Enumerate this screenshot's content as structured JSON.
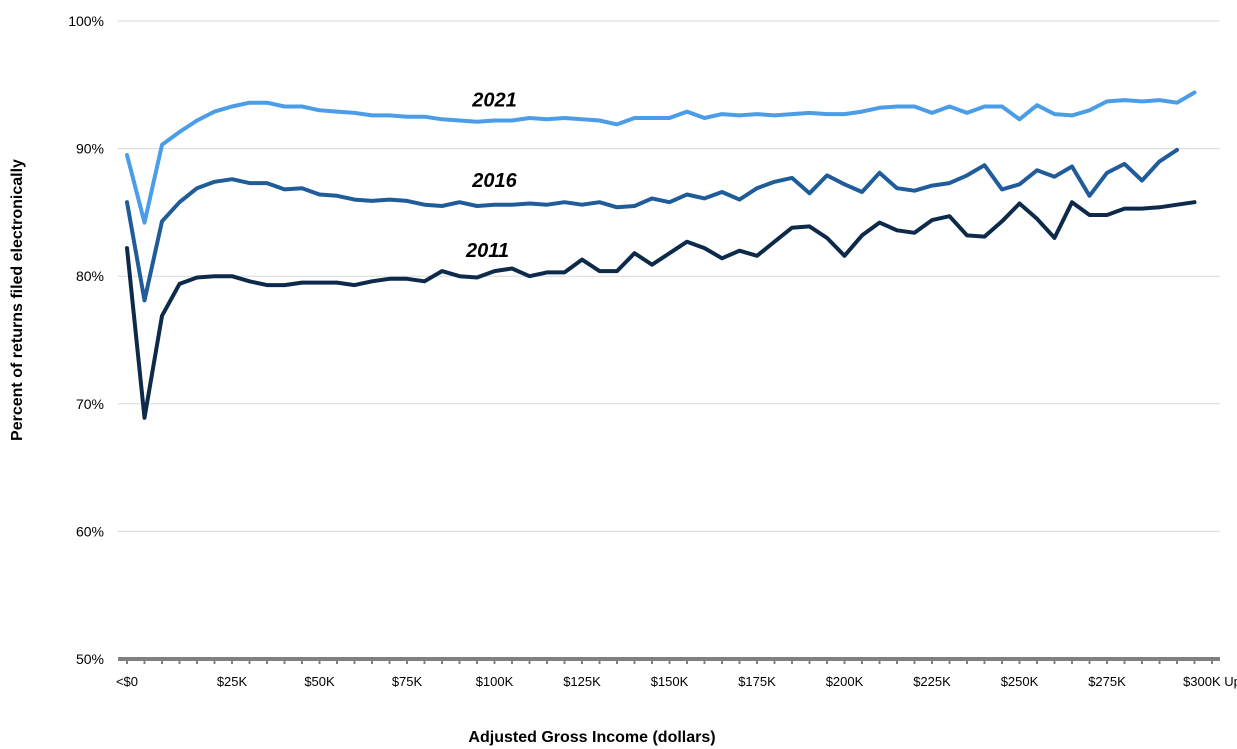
{
  "chart_data": {
    "type": "line",
    "xlabel": "Adjusted Gross Income (dollars)",
    "ylabel": "Percent of returns filed electronically",
    "ylim": [
      50,
      100
    ],
    "y_ticks": [
      50,
      60,
      70,
      80,
      90,
      100
    ],
    "y_tick_labels": [
      "50%",
      "60%",
      "70%",
      "80%",
      "90%",
      "100%"
    ],
    "x_tick_labels": [
      "<$0",
      "$25K",
      "$50K",
      "$75K",
      "$100K",
      "$125K",
      "$150K",
      "$175K",
      "$200K",
      "$225K",
      "$250K",
      "$275K",
      "$300K Up"
    ],
    "x_tick_income_k": [
      -5,
      25,
      50,
      75,
      100,
      125,
      150,
      175,
      200,
      225,
      250,
      275,
      305
    ],
    "grid": "horizontal",
    "legend": "none",
    "series": [
      {
        "name": "2021",
        "color": "#4a9de6",
        "points": [
          [
            -5,
            89.5
          ],
          [
            0,
            84.2
          ],
          [
            5,
            90.3
          ],
          [
            10,
            91.3
          ],
          [
            15,
            92.2
          ],
          [
            20,
            92.9
          ],
          [
            25,
            93.3
          ],
          [
            30,
            93.6
          ],
          [
            35,
            93.6
          ],
          [
            40,
            93.3
          ],
          [
            45,
            93.3
          ],
          [
            50,
            93.0
          ],
          [
            55,
            92.9
          ],
          [
            60,
            92.8
          ],
          [
            65,
            92.6
          ],
          [
            70,
            92.6
          ],
          [
            75,
            92.5
          ],
          [
            80,
            92.5
          ],
          [
            85,
            92.3
          ],
          [
            90,
            92.2
          ],
          [
            95,
            92.1
          ],
          [
            100,
            92.2
          ],
          [
            105,
            92.2
          ],
          [
            110,
            92.4
          ],
          [
            115,
            92.3
          ],
          [
            120,
            92.4
          ],
          [
            125,
            92.3
          ],
          [
            130,
            92.2
          ],
          [
            135,
            91.9
          ],
          [
            140,
            92.4
          ],
          [
            145,
            92.4
          ],
          [
            150,
            92.4
          ],
          [
            155,
            92.9
          ],
          [
            160,
            92.4
          ],
          [
            165,
            92.7
          ],
          [
            170,
            92.6
          ],
          [
            175,
            92.7
          ],
          [
            180,
            92.6
          ],
          [
            185,
            92.7
          ],
          [
            190,
            92.8
          ],
          [
            195,
            92.7
          ],
          [
            200,
            92.7
          ],
          [
            205,
            92.9
          ],
          [
            210,
            93.2
          ],
          [
            215,
            93.3
          ],
          [
            220,
            93.3
          ],
          [
            225,
            92.8
          ],
          [
            230,
            93.3
          ],
          [
            235,
            92.8
          ],
          [
            240,
            93.3
          ],
          [
            245,
            93.3
          ],
          [
            250,
            92.3
          ],
          [
            255,
            93.4
          ],
          [
            260,
            92.7
          ],
          [
            265,
            92.6
          ],
          [
            270,
            93.0
          ],
          [
            275,
            93.7
          ],
          [
            280,
            93.8
          ],
          [
            285,
            93.7
          ],
          [
            290,
            93.8
          ],
          [
            295,
            93.6
          ],
          [
            300,
            94.4
          ]
        ]
      },
      {
        "name": "2016",
        "color": "#1f5c99",
        "points": [
          [
            -5,
            85.8
          ],
          [
            0,
            78.1
          ],
          [
            5,
            84.3
          ],
          [
            10,
            85.8
          ],
          [
            15,
            86.9
          ],
          [
            20,
            87.4
          ],
          [
            25,
            87.6
          ],
          [
            30,
            87.3
          ],
          [
            35,
            87.3
          ],
          [
            40,
            86.8
          ],
          [
            45,
            86.9
          ],
          [
            50,
            86.4
          ],
          [
            55,
            86.3
          ],
          [
            60,
            86.0
          ],
          [
            65,
            85.9
          ],
          [
            70,
            86.0
          ],
          [
            75,
            85.9
          ],
          [
            80,
            85.6
          ],
          [
            85,
            85.5
          ],
          [
            90,
            85.8
          ],
          [
            95,
            85.5
          ],
          [
            100,
            85.6
          ],
          [
            105,
            85.6
          ],
          [
            110,
            85.7
          ],
          [
            115,
            85.6
          ],
          [
            120,
            85.8
          ],
          [
            125,
            85.6
          ],
          [
            130,
            85.8
          ],
          [
            135,
            85.4
          ],
          [
            140,
            85.5
          ],
          [
            145,
            86.1
          ],
          [
            150,
            85.8
          ],
          [
            155,
            86.4
          ],
          [
            160,
            86.1
          ],
          [
            165,
            86.6
          ],
          [
            170,
            86.0
          ],
          [
            175,
            86.9
          ],
          [
            180,
            87.4
          ],
          [
            185,
            87.7
          ],
          [
            190,
            86.5
          ],
          [
            195,
            87.9
          ],
          [
            200,
            87.2
          ],
          [
            205,
            86.6
          ],
          [
            210,
            88.1
          ],
          [
            215,
            86.9
          ],
          [
            220,
            86.7
          ],
          [
            225,
            87.1
          ],
          [
            230,
            87.3
          ],
          [
            235,
            87.9
          ],
          [
            240,
            88.7
          ],
          [
            245,
            86.8
          ],
          [
            250,
            87.2
          ],
          [
            255,
            88.3
          ],
          [
            260,
            87.8
          ],
          [
            265,
            88.6
          ],
          [
            270,
            86.3
          ],
          [
            275,
            88.1
          ],
          [
            280,
            88.8
          ],
          [
            285,
            87.5
          ],
          [
            290,
            89.0
          ],
          [
            295,
            89.9
          ]
        ]
      },
      {
        "name": "2011",
        "color": "#0d2a4a",
        "points": [
          [
            -5,
            82.2
          ],
          [
            0,
            68.9
          ],
          [
            5,
            76.9
          ],
          [
            10,
            79.4
          ],
          [
            15,
            79.9
          ],
          [
            20,
            80.0
          ],
          [
            25,
            80.0
          ],
          [
            30,
            79.6
          ],
          [
            35,
            79.3
          ],
          [
            40,
            79.3
          ],
          [
            45,
            79.5
          ],
          [
            50,
            79.5
          ],
          [
            55,
            79.5
          ],
          [
            60,
            79.3
          ],
          [
            65,
            79.6
          ],
          [
            70,
            79.8
          ],
          [
            75,
            79.8
          ],
          [
            80,
            79.6
          ],
          [
            85,
            80.4
          ],
          [
            90,
            80.0
          ],
          [
            95,
            79.9
          ],
          [
            100,
            80.4
          ],
          [
            105,
            80.6
          ],
          [
            110,
            80.0
          ],
          [
            115,
            80.3
          ],
          [
            120,
            80.3
          ],
          [
            125,
            81.3
          ],
          [
            130,
            80.4
          ],
          [
            135,
            80.4
          ],
          [
            140,
            81.8
          ],
          [
            145,
            80.9
          ],
          [
            150,
            81.8
          ],
          [
            155,
            82.7
          ],
          [
            160,
            82.2
          ],
          [
            165,
            81.4
          ],
          [
            170,
            82.0
          ],
          [
            175,
            81.6
          ],
          [
            180,
            82.7
          ],
          [
            185,
            83.8
          ],
          [
            190,
            83.9
          ],
          [
            195,
            83.0
          ],
          [
            200,
            81.6
          ],
          [
            205,
            83.2
          ],
          [
            210,
            84.2
          ],
          [
            215,
            83.6
          ],
          [
            220,
            83.4
          ],
          [
            225,
            84.4
          ],
          [
            230,
            84.7
          ],
          [
            235,
            83.2
          ],
          [
            240,
            83.1
          ],
          [
            245,
            84.3
          ],
          [
            250,
            85.7
          ],
          [
            255,
            84.5
          ],
          [
            260,
            83.0
          ],
          [
            265,
            85.8
          ],
          [
            270,
            84.8
          ],
          [
            275,
            84.8
          ],
          [
            280,
            85.3
          ],
          [
            285,
            85.3
          ],
          [
            290,
            85.4
          ],
          [
            295,
            85.6
          ],
          [
            300,
            85.8
          ]
        ]
      }
    ],
    "annotations": [
      {
        "text": "2021",
        "series": "2021",
        "at_income_k": 100,
        "at_value": 93.3
      },
      {
        "text": "2016",
        "series": "2016",
        "at_income_k": 100,
        "at_value": 87.0
      },
      {
        "text": "2011",
        "series": "2011",
        "at_income_k": 98,
        "at_value": 81.5
      }
    ]
  }
}
